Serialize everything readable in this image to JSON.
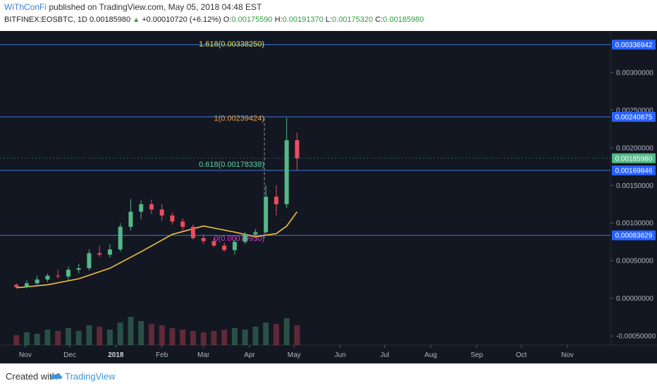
{
  "header": {
    "author": "WiThConFi",
    "published": "published on TradingView.com, May 05, 2018 04:48 EST",
    "symbol": "BITFINEX:EOSBTC, 1D",
    "last": "0.00185980",
    "change": "+0.00010720 (+6.12%)",
    "o_label": "O:",
    "o_value": "0.00175590",
    "h_label": "H:",
    "h_value": "0.00191370",
    "l_label": "L:",
    "l_value": "0.00175320",
    "c_label": "C:",
    "c_value": "0.00185980"
  },
  "footer": {
    "created_with": "Created with",
    "brand": "TradingView"
  },
  "colors": {
    "background": "#131722",
    "up": "#53b987",
    "down": "#eb4d5c",
    "ma": "#f0c040",
    "level_line": "#3c78d8",
    "fib_1618": "#e6e64a",
    "fib_1": "#e8a040",
    "fib_0618": "#5fd0a0",
    "fib_0": "#d040d0"
  },
  "chart_data": {
    "type": "candlestick",
    "symbol": "EOSBTC",
    "interval": "1D",
    "x_tick_labels": [
      "Nov",
      "Dec",
      "2018",
      "Feb",
      "Mar",
      "Apr",
      "May",
      "Jun",
      "Jul",
      "Aug",
      "Sep",
      "Oct",
      "Nov"
    ],
    "y_tick_labels": [
      "0.00300000",
      "0.00250000",
      "0.00200000",
      "0.00150000",
      "0.00100000",
      "0.00050000",
      "0.00000000",
      "-0.00050000"
    ],
    "ylim": [
      -0.00062,
      0.00355
    ],
    "candles": [
      {
        "date": "2017-10-26",
        "o": 0.00018,
        "h": 0.0002,
        "l": 0.00014,
        "c": 0.00015
      },
      {
        "date": "2017-11-02",
        "o": 0.00015,
        "h": 0.00024,
        "l": 0.00013,
        "c": 0.0002
      },
      {
        "date": "2017-11-09",
        "o": 0.0002,
        "h": 0.0003,
        "l": 0.00018,
        "c": 0.00025
      },
      {
        "date": "2017-11-16",
        "o": 0.00025,
        "h": 0.00033,
        "l": 0.00022,
        "c": 0.0003
      },
      {
        "date": "2017-11-23",
        "o": 0.0003,
        "h": 0.00038,
        "l": 0.00026,
        "c": 0.00029
      },
      {
        "date": "2017-11-30",
        "o": 0.00029,
        "h": 0.00042,
        "l": 0.00024,
        "c": 0.00038
      },
      {
        "date": "2017-12-07",
        "o": 0.00038,
        "h": 0.00046,
        "l": 0.00033,
        "c": 0.0004
      },
      {
        "date": "2017-12-14",
        "o": 0.0004,
        "h": 0.00065,
        "l": 0.00037,
        "c": 0.0006
      },
      {
        "date": "2017-12-21",
        "o": 0.0006,
        "h": 0.0007,
        "l": 0.00055,
        "c": 0.00058
      },
      {
        "date": "2017-12-28",
        "o": 0.00058,
        "h": 0.00072,
        "l": 0.00054,
        "c": 0.00065
      },
      {
        "date": "2018-01-04",
        "o": 0.00065,
        "h": 0.001,
        "l": 0.00062,
        "c": 0.00095
      },
      {
        "date": "2018-01-11",
        "o": 0.00095,
        "h": 0.00132,
        "l": 0.0009,
        "c": 0.00115
      },
      {
        "date": "2018-01-18",
        "o": 0.00115,
        "h": 0.0013,
        "l": 0.00105,
        "c": 0.00125
      },
      {
        "date": "2018-01-25",
        "o": 0.00125,
        "h": 0.00131,
        "l": 0.00112,
        "c": 0.00118
      },
      {
        "date": "2018-02-01",
        "o": 0.00118,
        "h": 0.00125,
        "l": 0.00103,
        "c": 0.0011
      },
      {
        "date": "2018-02-08",
        "o": 0.0011,
        "h": 0.00114,
        "l": 0.00098,
        "c": 0.00102
      },
      {
        "date": "2018-02-15",
        "o": 0.00102,
        "h": 0.00106,
        "l": 0.0009,
        "c": 0.00095
      },
      {
        "date": "2018-02-22",
        "o": 0.00095,
        "h": 0.00098,
        "l": 0.00078,
        "c": 0.0008
      },
      {
        "date": "2018-03-01",
        "o": 0.0008,
        "h": 0.00085,
        "l": 0.00072,
        "c": 0.00076
      },
      {
        "date": "2018-03-08",
        "o": 0.00076,
        "h": 0.0008,
        "l": 0.00068,
        "c": 0.0007
      },
      {
        "date": "2018-03-15",
        "o": 0.0007,
        "h": 0.00074,
        "l": 0.00062,
        "c": 0.00064
      },
      {
        "date": "2018-03-22",
        "o": 0.00064,
        "h": 0.00078,
        "l": 0.00058,
        "c": 0.00075
      },
      {
        "date": "2018-03-29",
        "o": 0.00075,
        "h": 0.00088,
        "l": 0.00072,
        "c": 0.00085
      },
      {
        "date": "2018-04-05",
        "o": 0.00085,
        "h": 0.00092,
        "l": 0.0008,
        "c": 0.00088
      },
      {
        "date": "2018-04-12",
        "o": 0.00088,
        "h": 0.0015,
        "l": 0.00086,
        "c": 0.00135
      },
      {
        "date": "2018-04-19",
        "o": 0.00135,
        "h": 0.0015,
        "l": 0.0011,
        "c": 0.00125
      },
      {
        "date": "2018-04-26",
        "o": 0.00125,
        "h": 0.002394,
        "l": 0.0012,
        "c": 0.0021
      },
      {
        "date": "2018-05-03",
        "o": 0.0021,
        "h": 0.0022,
        "l": 0.0017,
        "c": 0.00186
      }
    ],
    "volume_bars": [
      0.35,
      0.45,
      0.4,
      0.55,
      0.5,
      0.6,
      0.5,
      0.7,
      0.65,
      0.55,
      0.8,
      1.0,
      0.85,
      0.75,
      0.7,
      0.6,
      0.55,
      0.5,
      0.45,
      0.5,
      0.55,
      0.6,
      0.55,
      0.65,
      0.8,
      0.75,
      0.95,
      0.7
    ],
    "moving_average": [
      {
        "date": "2017-10-26",
        "v": 0.00014
      },
      {
        "date": "2017-11-16",
        "v": 0.00018
      },
      {
        "date": "2017-12-07",
        "v": 0.00026
      },
      {
        "date": "2017-12-28",
        "v": 0.0004
      },
      {
        "date": "2018-01-18",
        "v": 0.00062
      },
      {
        "date": "2018-02-08",
        "v": 0.00085
      },
      {
        "date": "2018-03-01",
        "v": 0.00096
      },
      {
        "date": "2018-03-22",
        "v": 0.00088
      },
      {
        "date": "2018-04-05",
        "v": 0.00082
      },
      {
        "date": "2018-04-19",
        "v": 0.00086
      },
      {
        "date": "2018-04-26",
        "v": 0.00096
      },
      {
        "date": "2018-05-03",
        "v": 0.00115
      }
    ],
    "fib_levels": [
      {
        "label": "1.618(0.00338250)",
        "value": 0.0033825
      },
      {
        "label": "1(0.00239424)",
        "value": 0.00239424
      },
      {
        "label": "0.618(0.00178338)",
        "value": 0.00178338
      },
      {
        "label": "0(0.00079930)",
        "value": 0.0007993
      }
    ],
    "horizontal_levels": [
      {
        "label": "0.00336942",
        "value": 0.00336942
      },
      {
        "label": "0.00240875",
        "value": 0.00240875
      },
      {
        "label": "0.00169846",
        "value": 0.00169846
      },
      {
        "label": "0.00083629",
        "value": 0.00083629
      }
    ],
    "current_price": {
      "label": "0.00185980",
      "value": 0.0018598
    }
  }
}
